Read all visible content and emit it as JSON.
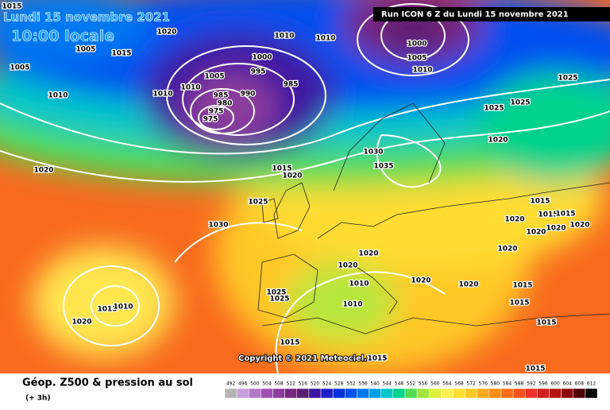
{
  "header": {
    "date": "Lundi 15 novembre 2021",
    "time": "10:00 locale",
    "run": "Run ICON 6 Z du Lundi 15 novembre 2021"
  },
  "map": {
    "copyright": "Copyright © 2021 Meteociel.fr",
    "isobar_labels": [
      1015,
      1020,
      1005,
      1015,
      1005,
      1010,
      1010,
      1010,
      1005,
      995,
      1000,
      985,
      990,
      985,
      980,
      975,
      975,
      1010,
      1010,
      1000,
      1005,
      1010,
      1025,
      1025,
      1025,
      1020,
      1020,
      1015,
      1020,
      1030,
      1035,
      1025,
      1030,
      1015,
      1015,
      1020,
      1015,
      1020,
      1020,
      1020,
      1020,
      1020,
      1020,
      1020,
      1020,
      1010,
      1010,
      1015,
      1015,
      1015,
      1025,
      1025,
      1015,
      1010,
      1020,
      1015,
      1015,
      1015
    ]
  },
  "footer": {
    "title": "Géop. Z500 & pression au sol",
    "step": "(+ 3h)",
    "scale": {
      "values": [
        492,
        496,
        500,
        504,
        508,
        512,
        516,
        520,
        524,
        528,
        532,
        536,
        540,
        544,
        548,
        552,
        556,
        560,
        564,
        568,
        572,
        576,
        580,
        584,
        588,
        592,
        596,
        600,
        604,
        608,
        612
      ],
      "colors": [
        "#b4b4b4",
        "#c8a0dc",
        "#b478c8",
        "#a050b4",
        "#8c3c9c",
        "#782880",
        "#5a1e6e",
        "#3c14a0",
        "#1e1ec8",
        "#0032dc",
        "#0050f0",
        "#0078f0",
        "#00a0e6",
        "#00c8c8",
        "#00d28c",
        "#50dc50",
        "#a0e63c",
        "#dcf03c",
        "#fff050",
        "#ffdc32",
        "#ffc828",
        "#ffaa1e",
        "#ff8c14",
        "#ff6e14",
        "#ff501e",
        "#f03228",
        "#d21e1e",
        "#b41414",
        "#8c0a0a",
        "#500505",
        "#000000"
      ]
    }
  }
}
